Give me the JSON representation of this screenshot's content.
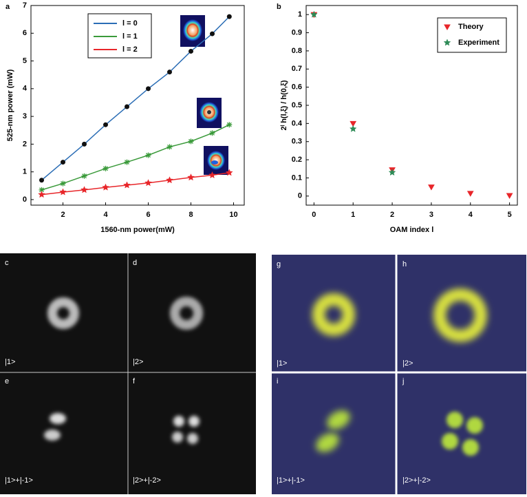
{
  "chart_data": [
    {
      "type": "line",
      "panel_label": "a",
      "xlabel": "1560-nm power(mW)",
      "ylabel": "525-nm power (mW)",
      "xlim": [
        0.5,
        10.5
      ],
      "ylim": [
        -0.2,
        7
      ],
      "xticks": [
        2,
        4,
        6,
        8,
        10
      ],
      "yticks": [
        0,
        1,
        2,
        3,
        4,
        5,
        6,
        7
      ],
      "x": [
        1,
        2,
        3,
        4,
        5,
        6,
        7,
        8,
        9,
        9.8
      ],
      "series": [
        {
          "name": "l = 0",
          "color": "#2a6db5",
          "marker_color": "#111111",
          "values": [
            0.7,
            1.35,
            2.0,
            2.7,
            3.35,
            4.0,
            4.6,
            5.35,
            5.98,
            6.6
          ]
        },
        {
          "name": "l = 1",
          "color": "#3a9a3a",
          "marker_color": "#3a9a3a",
          "values": [
            0.35,
            0.58,
            0.85,
            1.12,
            1.35,
            1.6,
            1.9,
            2.1,
            2.4,
            2.7
          ]
        },
        {
          "name": "l = 2",
          "color": "#e8262a",
          "marker_color": "#e8262a",
          "values": [
            0.18,
            0.27,
            0.35,
            0.44,
            0.52,
            0.6,
            0.7,
            0.8,
            0.88,
            0.97
          ]
        }
      ]
    },
    {
      "type": "scatter",
      "panel_label": "b",
      "xlabel": "OAM index l",
      "ylabel": "2ˡ h(l,ξ) / h(0,ξ)",
      "xlim": [
        -0.2,
        5.2
      ],
      "ylim": [
        -0.05,
        1.05
      ],
      "xticks": [
        0,
        1,
        2,
        3,
        4,
        5
      ],
      "yticks": [
        0,
        0.1,
        0.2,
        0.3,
        0.4,
        0.5,
        0.6,
        0.7,
        0.8,
        0.9,
        1
      ],
      "series": [
        {
          "name": "Theory",
          "color": "#e8262a",
          "x": [
            0,
            1,
            2,
            3,
            4,
            5
          ],
          "values": [
            1,
            0.4,
            0.145,
            0.05,
            0.015,
            0.003
          ]
        },
        {
          "name": "Experiment",
          "color": "#2e8b57",
          "x": [
            0,
            1,
            2
          ],
          "values": [
            1,
            0.37,
            0.13
          ]
        }
      ]
    }
  ],
  "panels": [
    {
      "letter": "c",
      "state": "|1>"
    },
    {
      "letter": "d",
      "state": "|2>"
    },
    {
      "letter": "e",
      "state": "|1>+|-1>"
    },
    {
      "letter": "f",
      "state": "|2>+|-2>"
    },
    {
      "letter": "g",
      "state": "|1>"
    },
    {
      "letter": "h",
      "state": "|2>"
    },
    {
      "letter": "i",
      "state": "|1>+|-1>"
    },
    {
      "letter": "j",
      "state": "|2>+|-2>"
    }
  ]
}
